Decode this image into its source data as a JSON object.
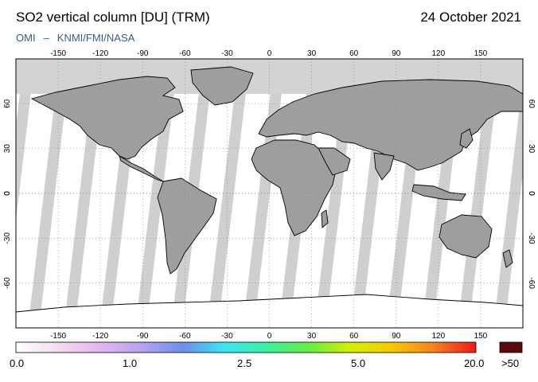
{
  "header": {
    "title": "SO2 vertical column [DU] (TRM)",
    "date": "24 October 2021",
    "credit_left": "OMI",
    "credit_sep": "–",
    "credit_right": "KNMI/FMI/NASA"
  },
  "map": {
    "lon_ticks": [
      -150,
      -120,
      -90,
      -60,
      -30,
      0,
      30,
      60,
      90,
      120,
      150
    ],
    "lat_ticks": [
      -60,
      -30,
      0,
      30,
      60
    ],
    "land_color": "#9e9e9e",
    "swath_gap_color": "#cfcfcf",
    "nodata_color": "#d3d3d3",
    "data_color": "#ffffff",
    "coast_color": "#000000",
    "graticule": "dotted"
  },
  "colorbar": {
    "tick_labels": [
      "0.0",
      "1.0",
      "2.5",
      "5.0",
      "20.0"
    ],
    "overflow_label": ">50",
    "overflow_color": "#5a0a0a",
    "stops": [
      "#ffffff",
      "#f4dcef",
      "#e4b6f0",
      "#b4a4f0",
      "#6e8ef0",
      "#3ae8f4",
      "#3af0a0",
      "#64f040",
      "#d4f000",
      "#f8c800",
      "#f88020",
      "#f01818"
    ]
  }
}
